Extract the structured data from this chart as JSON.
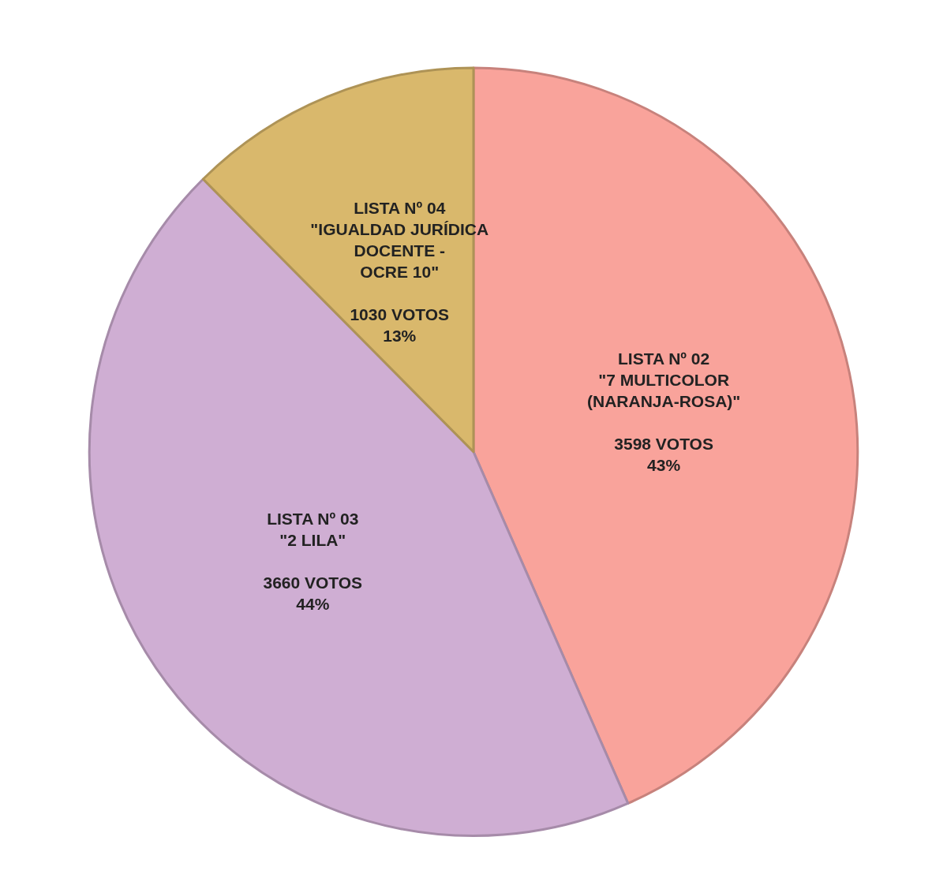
{
  "chart_data": {
    "type": "pie",
    "categories": [
      "LISTA Nº 02\n\"7 MULTICOLOR\n(NARANJA-ROSA)\"",
      "LISTA Nº 03\n\"2 LILA\"",
      "LISTA Nº 04\n\"IGUALDAD JURÍDICA\nDOCENTE -\nOCRE 10\""
    ],
    "values": [
      3598,
      3660,
      1030
    ],
    "value_labels": [
      "3598 VOTOS\n43%",
      "3660 VOTOS\n44%",
      "1030 VOTOS\n13%"
    ],
    "colors": [
      "#f9a39b",
      "#cfaed3",
      "#d9b86c"
    ]
  }
}
